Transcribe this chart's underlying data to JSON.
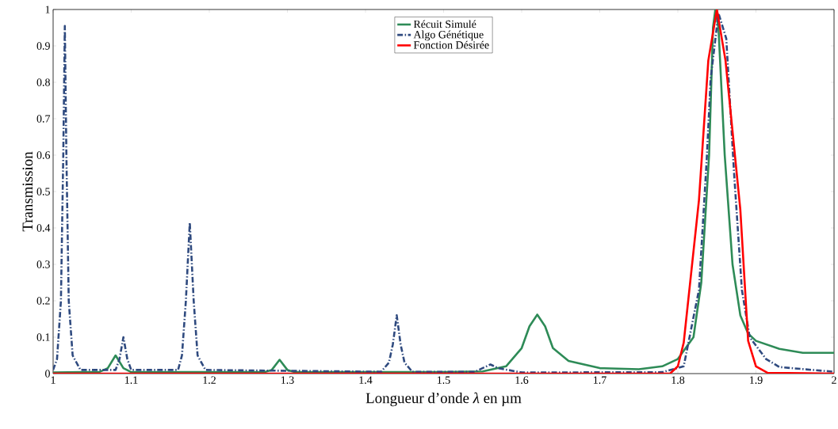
{
  "chart_data": {
    "type": "line",
    "xlabel": "Longueur d’onde *λ* en µm",
    "ylabel": "Transmission",
    "xlim": [
      1,
      2
    ],
    "ylim": [
      0,
      1
    ],
    "xticks": [
      1,
      1.1,
      1.2,
      1.3,
      1.4,
      1.5,
      1.6,
      1.7,
      1.8,
      1.9,
      2
    ],
    "yticks": [
      0,
      0.1,
      0.2,
      0.3,
      0.4,
      0.5,
      0.6,
      0.7,
      0.8,
      0.9,
      1
    ],
    "legend": "top",
    "grid": false,
    "series": [
      {
        "name": "Récuit Simulé",
        "color": "#2e8b57",
        "line_style": "solid",
        "x": [
          1.0,
          1.06,
          1.07,
          1.08,
          1.09,
          1.1,
          1.27,
          1.28,
          1.29,
          1.3,
          1.31,
          1.5,
          1.55,
          1.58,
          1.6,
          1.61,
          1.62,
          1.63,
          1.64,
          1.66,
          1.7,
          1.75,
          1.78,
          1.8,
          1.82,
          1.83,
          1.84,
          1.845,
          1.848,
          1.852,
          1.86,
          1.87,
          1.88,
          1.89,
          1.9,
          1.93,
          1.96,
          2.0
        ],
        "values": [
          0.003,
          0.005,
          0.015,
          0.05,
          0.015,
          0.004,
          0.004,
          0.01,
          0.038,
          0.01,
          0.004,
          0.004,
          0.006,
          0.02,
          0.07,
          0.13,
          0.162,
          0.13,
          0.07,
          0.035,
          0.015,
          0.012,
          0.02,
          0.04,
          0.1,
          0.25,
          0.6,
          0.95,
          1.0,
          0.95,
          0.6,
          0.3,
          0.16,
          0.11,
          0.09,
          0.068,
          0.057,
          0.057
        ]
      },
      {
        "name": "Algo Génétique",
        "color": "#2f4a7f",
        "line_style": "dashdot",
        "x": [
          1.0,
          1.005,
          1.01,
          1.013,
          1.015,
          1.017,
          1.02,
          1.025,
          1.035,
          1.08,
          1.085,
          1.09,
          1.095,
          1.1,
          1.16,
          1.165,
          1.17,
          1.175,
          1.18,
          1.185,
          1.195,
          1.42,
          1.43,
          1.435,
          1.44,
          1.445,
          1.45,
          1.46,
          1.54,
          1.555,
          1.56,
          1.57,
          1.6,
          1.78,
          1.8075,
          1.827,
          1.837,
          1.842,
          1.852,
          1.862,
          1.872,
          1.882,
          1.892,
          1.913,
          1.93,
          2.0
        ],
        "values": [
          0.01,
          0.04,
          0.2,
          0.6,
          0.955,
          0.6,
          0.2,
          0.05,
          0.01,
          0.01,
          0.04,
          0.1,
          0.04,
          0.01,
          0.01,
          0.05,
          0.2,
          0.415,
          0.2,
          0.05,
          0.01,
          0.005,
          0.03,
          0.08,
          0.16,
          0.08,
          0.03,
          0.005,
          0.005,
          0.02,
          0.025,
          0.015,
          0.003,
          0.004,
          0.02,
          0.23,
          0.59,
          0.81,
          0.99,
          0.92,
          0.55,
          0.23,
          0.1,
          0.04,
          0.018,
          0.005
        ]
      },
      {
        "name": "Fonction Désirée",
        "color": "#ff0000",
        "line_style": "solid",
        "x": [
          1.0,
          1.79,
          1.8,
          1.8075,
          1.827,
          1.839,
          1.85,
          1.861,
          1.88,
          1.89,
          1.9,
          1.915,
          2.0
        ],
        "values": [
          0,
          0,
          0.02,
          0.085,
          0.476,
          0.86,
          1.0,
          0.86,
          0.45,
          0.09,
          0.02,
          0.002,
          0
        ]
      }
    ]
  }
}
